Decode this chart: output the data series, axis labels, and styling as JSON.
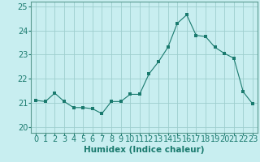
{
  "x": [
    0,
    1,
    2,
    3,
    4,
    5,
    6,
    7,
    8,
    9,
    10,
    11,
    12,
    13,
    14,
    15,
    16,
    17,
    18,
    19,
    20,
    21,
    22,
    23
  ],
  "y": [
    21.1,
    21.05,
    21.4,
    21.05,
    20.8,
    20.8,
    20.75,
    20.55,
    21.05,
    21.05,
    21.35,
    21.35,
    22.2,
    22.7,
    23.3,
    24.3,
    24.65,
    23.8,
    23.75,
    23.3,
    23.05,
    22.85,
    21.45,
    20.95
  ],
  "line_color": "#1a7a6e",
  "marker": "s",
  "marker_size": 2.5,
  "bg_color": "#c8eef0",
  "grid_color": "#9ecece",
  "xlabel": "Humidex (Indice chaleur)",
  "ylim": [
    19.75,
    25.2
  ],
  "xlim": [
    -0.5,
    23.5
  ],
  "yticks": [
    20,
    21,
    22,
    23,
    24,
    25
  ],
  "xticks": [
    0,
    1,
    2,
    3,
    4,
    5,
    6,
    7,
    8,
    9,
    10,
    11,
    12,
    13,
    14,
    15,
    16,
    17,
    18,
    19,
    20,
    21,
    22,
    23
  ],
  "font_size_label": 7.5,
  "font_size_tick": 7,
  "tick_color": "#1a7a6e",
  "label_color": "#1a7a6e",
  "spine_color": "#5a9a90"
}
